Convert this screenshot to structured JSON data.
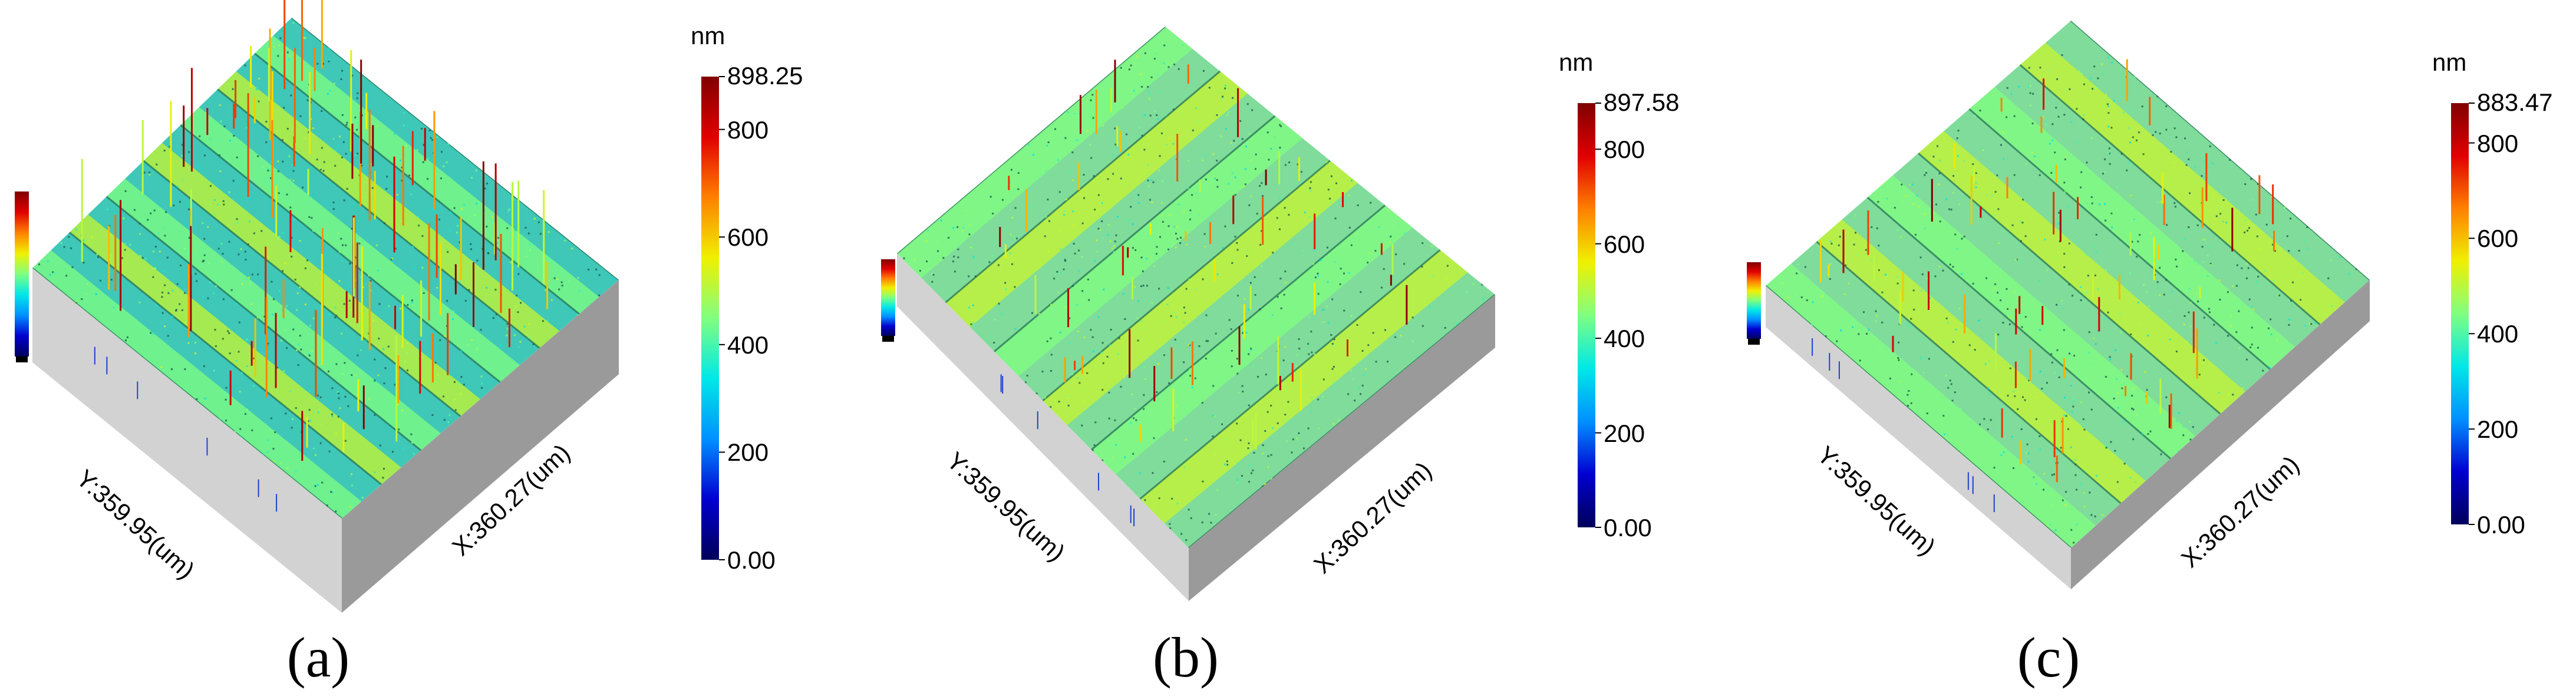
{
  "panels": [
    {
      "caption": "(a)",
      "unit": "nm",
      "max": "898.25",
      "ticks": [
        "800",
        "600",
        "400",
        "200",
        "0.00"
      ],
      "y_axis": "Y:359.95(um)",
      "x_axis": "X:360.27(um)"
    },
    {
      "caption": "(b)",
      "unit": "nm",
      "max": "897.58",
      "ticks": [
        "800",
        "600",
        "400",
        "200",
        "0.00"
      ],
      "y_axis": "Y:359.95(um)",
      "x_axis": "X:360.27(um)"
    },
    {
      "caption": "(c)",
      "unit": "nm",
      "max": "883.47",
      "ticks": [
        "800",
        "600",
        "400",
        "200",
        "0.00"
      ],
      "y_axis": "Y:359.95(um)",
      "x_axis": "X:360.27(um)"
    }
  ],
  "colors": {
    "colormap": [
      "#00005a",
      "#0000d0",
      "#0090ff",
      "#00e8e8",
      "#80ff80",
      "#f0f000",
      "#ff8000",
      "#e00000",
      "#800000"
    ],
    "surface_base": "#3fc7b8",
    "side_light": "#d2d2d2",
    "side_dark": "#9a9a9a"
  },
  "icons": [
    "colorbar-gradient",
    "mini-colorbar-icon"
  ]
}
